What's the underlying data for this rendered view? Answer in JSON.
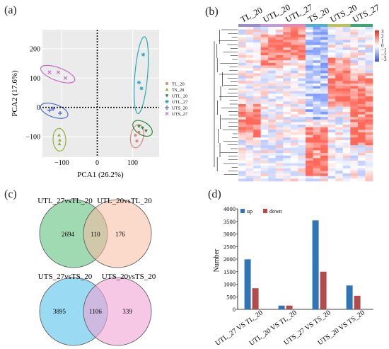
{
  "panel_labels": {
    "a": "(a)",
    "b": "(b)",
    "c": "(c)",
    "d": "(d)"
  },
  "colors": {
    "TL_20": "#d98a7a",
    "TS_20": "#8fae3a",
    "UTL_20": "#2e8b3a",
    "UTL_27": "#2aa8b8",
    "UTS_20": "#4a6fd0",
    "UTS_27": "#c36fc3",
    "up": "#2f74b5",
    "down": "#b64b4b",
    "venn1_a": "#8fd3a6",
    "venn1_b": "#f7b9a0",
    "venn2_a": "#8fd7f2",
    "venn2_b": "#f2a3d6"
  },
  "chart_data": [
    {
      "type": "scatter",
      "panel": "a",
      "xlabel": "PCA1 (26.2%)",
      "ylabel": "PCA2 (17.6%)",
      "xlim": [
        -155,
        175
      ],
      "ylim": [
        -170,
        265
      ],
      "xticks": [
        -100,
        0,
        100
      ],
      "yticks": [
        -100,
        0,
        100,
        200
      ],
      "grid": true,
      "legend_position": "right",
      "series": [
        {
          "name": "TL_20",
          "marker": "circle",
          "points": [
            [
              108,
              -95
            ],
            [
              118,
              -85
            ],
            [
              112,
              -115
            ]
          ]
        },
        {
          "name": "TS_20",
          "marker": "triangle",
          "points": [
            [
              -108,
              -95
            ],
            [
              -106,
              -112
            ],
            [
              -107,
              -125
            ]
          ]
        },
        {
          "name": "UTL_20",
          "marker": "triangle-down",
          "points": [
            [
              118,
              -65
            ],
            [
              128,
              -70
            ],
            [
              138,
              -80
            ]
          ]
        },
        {
          "name": "UTL_27",
          "marker": "star",
          "points": [
            [
              130,
              180
            ],
            [
              118,
              85
            ],
            [
              125,
              65
            ]
          ]
        },
        {
          "name": "UTS_20",
          "marker": "plus",
          "points": [
            [
              -135,
              -10
            ],
            [
              -125,
              -5
            ],
            [
              -105,
              -20
            ]
          ]
        },
        {
          "name": "UTS_27",
          "marker": "cross",
          "points": [
            [
              -135,
              120
            ],
            [
              -110,
              120
            ],
            [
              -90,
              100
            ]
          ]
        }
      ]
    },
    {
      "type": "heatmap",
      "panel": "b",
      "columns": [
        "TL_20",
        "UTL_20",
        "UTL_27",
        "TS_20",
        "UTS_20",
        "UTS_27"
      ],
      "group_colors": [
        "#9c8ccd",
        "#c39ad8",
        "#e389b5",
        "#4fb0cc",
        "#b9c35a",
        "#3ba772"
      ],
      "colorbar_ticks": [
        "3",
        "2",
        "1",
        "0",
        "−1",
        "−2",
        "−3"
      ]
    },
    {
      "type": "venn",
      "panel": "c",
      "diagrams": [
        {
          "left_label": "UTL_27vsTL_20",
          "right_label": "UTL_20vsTL_20",
          "left_only": "2694",
          "overlap": "110",
          "right_only": "176"
        },
        {
          "left_label": "UTS_27vsTS_20",
          "right_label": "UTS_20vsTS_20",
          "left_only": "3895",
          "overlap": "1106",
          "right_only": "339"
        }
      ]
    },
    {
      "type": "bar",
      "panel": "d",
      "categories": [
        "UTL_27 VS TL_20",
        "UTL_20 VS TL_20",
        "UTS_27 VS TS_20",
        "UTS_20 VS TS_20"
      ],
      "series": [
        {
          "name": "up",
          "values": [
            1990,
            150,
            3540,
            950
          ]
        },
        {
          "name": "down",
          "values": [
            840,
            150,
            1500,
            540
          ]
        }
      ],
      "ylabel": "Number",
      "ylim": [
        0,
        4000
      ],
      "yticks": [
        0,
        500,
        1000,
        1500,
        2000,
        2500,
        3000,
        3500,
        4000
      ],
      "legend_position": "top-left"
    }
  ]
}
